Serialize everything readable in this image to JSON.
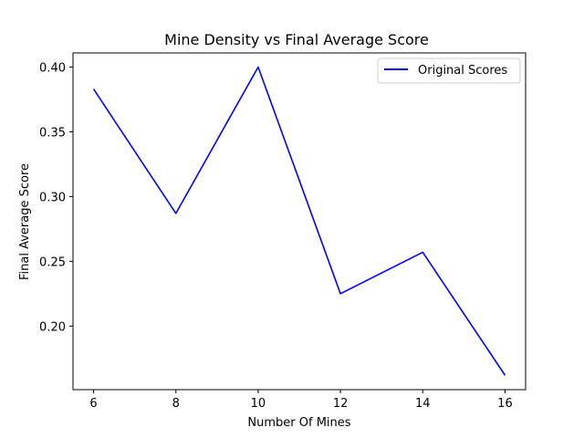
{
  "chart_data": {
    "type": "line",
    "title": "Mine Density vs Final Average Score",
    "xlabel": "Number Of Mines",
    "ylabel": "Final Average Score",
    "x": [
      6,
      8,
      10,
      12,
      14,
      16
    ],
    "series": [
      {
        "name": "Original Scores",
        "values": [
          0.383,
          0.287,
          0.4,
          0.225,
          0.257,
          0.162
        ],
        "color": "#0000ff"
      }
    ],
    "xlim": [
      5.5,
      16.5
    ],
    "ylim": [
      0.1509,
      0.4109
    ],
    "xticks": [
      6,
      8,
      10,
      12,
      14,
      16
    ],
    "xtick_labels": [
      "6",
      "8",
      "10",
      "12",
      "14",
      "16"
    ],
    "yticks": [
      0.2,
      0.25,
      0.3,
      0.35,
      0.4
    ],
    "ytick_labels": [
      "0.20",
      "0.25",
      "0.30",
      "0.35",
      "0.40"
    ],
    "grid": false,
    "legend_position": "top-right"
  }
}
